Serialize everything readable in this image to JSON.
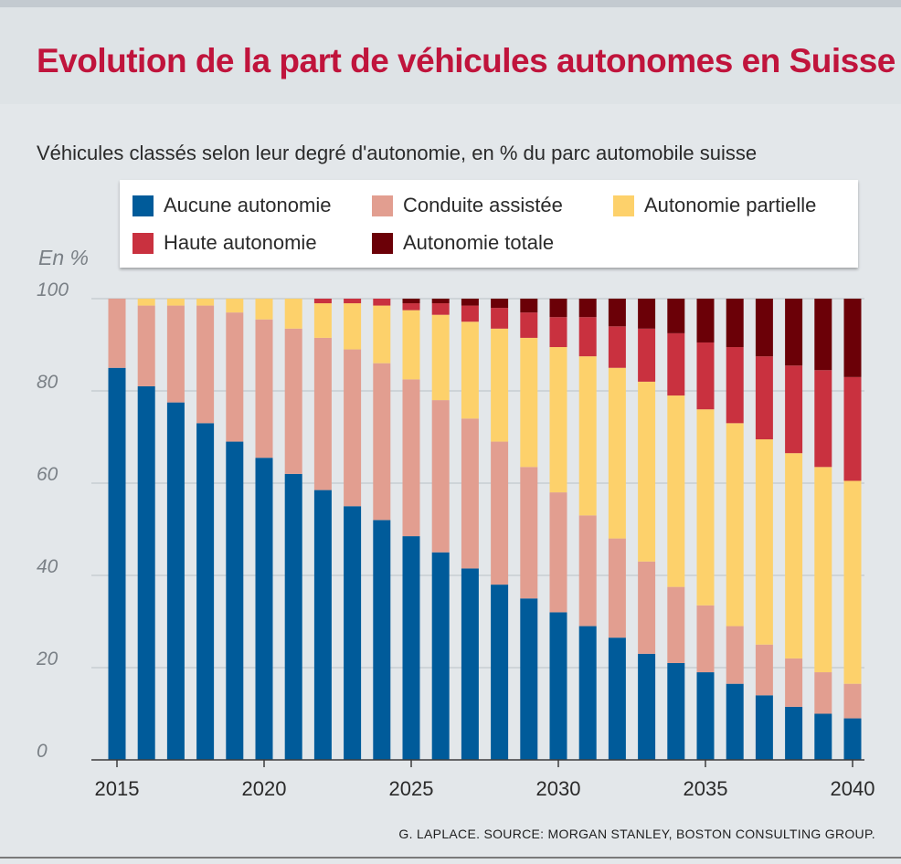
{
  "header": {
    "title": "Evolution de la part de véhicules autonomes en Suisse",
    "subtitle": "Véhicules classés selon leur degré d'autonomie, en % du parc automobile suisse"
  },
  "legend": {
    "items": [
      {
        "label": "Aucune autonomie",
        "color": "#005b9a"
      },
      {
        "label": "Conduite assistée",
        "color": "#e29e90"
      },
      {
        "label": "Autonomie partielle",
        "color": "#fdd16b"
      },
      {
        "label": "Haute autonomie",
        "color": "#c9313f"
      },
      {
        "label": "Autonomie totale",
        "color": "#6b0007"
      }
    ]
  },
  "footer": {
    "source": "G. LAPLACE. SOURCE: MORGAN STANLEY, BOSTON CONSULTING GROUP."
  },
  "chart_data": {
    "type": "bar",
    "stacked": true,
    "title": "Evolution de la part de véhicules autonomes en Suisse",
    "subtitle": "Véhicules classés selon leur degré d'autonomie, en % du parc automobile suisse",
    "ylabel": "En %",
    "xlabel": "",
    "ylim": [
      0,
      100
    ],
    "yticks": [
      0,
      20,
      40,
      60,
      80,
      100
    ],
    "xtick_labels": [
      "2015",
      "2020",
      "2025",
      "2030",
      "2035",
      "2040"
    ],
    "categories": [
      "2015",
      "2016",
      "2017",
      "2018",
      "2019",
      "2020",
      "2021",
      "2022",
      "2023",
      "2024",
      "2025",
      "2026",
      "2027",
      "2028",
      "2029",
      "2030",
      "2031",
      "2032",
      "2033",
      "2034",
      "2035",
      "2036",
      "2037",
      "2038",
      "2039",
      "2040"
    ],
    "series": [
      {
        "name": "Aucune autonomie",
        "color": "#005b9a",
        "values": [
          85,
          81,
          77.5,
          73,
          69,
          65.5,
          62,
          58.5,
          55,
          52,
          48.5,
          45,
          41.5,
          38,
          35,
          32,
          29,
          26.5,
          23,
          21,
          19,
          16.5,
          14,
          11.5,
          10,
          9
        ]
      },
      {
        "name": "Conduite assistée",
        "color": "#e29e90",
        "values": [
          15,
          17.5,
          21,
          25.5,
          28,
          30,
          31.5,
          33,
          34,
          34,
          34,
          33,
          32.5,
          31,
          28.5,
          26,
          24,
          21.5,
          20,
          16.5,
          14.5,
          12.5,
          11,
          10.5,
          9,
          7.5
        ]
      },
      {
        "name": "Autonomie partielle",
        "color": "#fdd16b",
        "values": [
          0,
          1.5,
          1.5,
          1.5,
          3,
          4.5,
          6.5,
          7.5,
          10,
          12.5,
          15,
          18.5,
          21,
          24.5,
          28,
          31.5,
          34.5,
          37,
          39,
          41.5,
          42.5,
          44,
          44.5,
          44.5,
          44.5,
          44
        ]
      },
      {
        "name": "Haute autonomie",
        "color": "#c9313f",
        "values": [
          0,
          0,
          0,
          0,
          0,
          0,
          0,
          1,
          1,
          1.5,
          1.5,
          2.5,
          3.5,
          4.5,
          5.5,
          6.5,
          8.5,
          9,
          11.5,
          13.5,
          14.5,
          16.5,
          18,
          19,
          21,
          22.5
        ]
      },
      {
        "name": "Autonomie totale",
        "color": "#6b0007",
        "values": [
          0,
          0,
          0,
          0,
          0,
          0,
          0,
          0,
          0,
          0,
          1,
          1,
          1.5,
          2,
          3,
          4,
          4,
          6,
          6.5,
          7.5,
          9.5,
          10.5,
          12.5,
          14.5,
          15.5,
          17
        ]
      }
    ]
  }
}
